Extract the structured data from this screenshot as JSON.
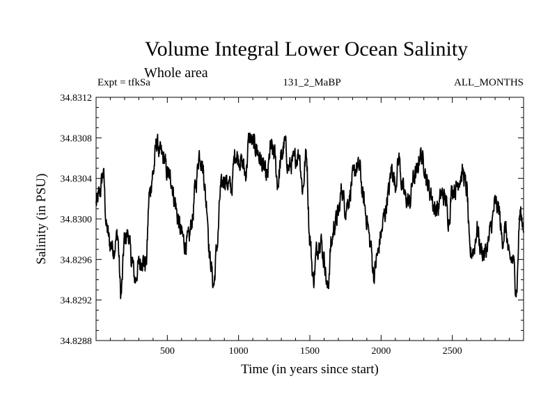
{
  "chart_data": {
    "type": "line",
    "title": "Volume Integral Lower Ocean Salinity",
    "subtitle": "Whole area",
    "experiment_label": "Expt = tfkSa",
    "run_label": "131_2_MaBP",
    "period_label": "ALL_MONTHS",
    "xlabel": "Time (in years since start)",
    "ylabel": "Salinity (in PSU)",
    "xlim": [
      0,
      3000
    ],
    "ylim": [
      34.8288,
      34.8312
    ],
    "x_ticks": [
      500,
      1000,
      1500,
      2000,
      2500
    ],
    "y_ticks": [
      "34.8288",
      "34.8292",
      "34.8296",
      "34.8300",
      "34.8304",
      "34.8308",
      "34.8312"
    ],
    "grid": false,
    "line_color": "#000000",
    "series": [
      {
        "name": "Salinity",
        "x": [
          0,
          25,
          50,
          75,
          100,
          125,
          150,
          175,
          200,
          225,
          250,
          275,
          300,
          325,
          350,
          375,
          400,
          425,
          450,
          475,
          500,
          525,
          550,
          575,
          600,
          625,
          650,
          675,
          700,
          725,
          750,
          775,
          800,
          825,
          850,
          875,
          900,
          925,
          950,
          975,
          1000,
          1025,
          1050,
          1075,
          1100,
          1125,
          1150,
          1175,
          1200,
          1225,
          1250,
          1275,
          1300,
          1325,
          1350,
          1375,
          1400,
          1425,
          1450,
          1475,
          1500,
          1525,
          1550,
          1575,
          1600,
          1625,
          1650,
          1675,
          1700,
          1725,
          1750,
          1775,
          1800,
          1825,
          1850,
          1875,
          1900,
          1925,
          1950,
          1975,
          2000,
          2025,
          2050,
          2075,
          2100,
          2125,
          2150,
          2175,
          2200,
          2225,
          2250,
          2275,
          2300,
          2325,
          2350,
          2375,
          2400,
          2425,
          2450,
          2475,
          2500,
          2525,
          2550,
          2575,
          2600,
          2625,
          2650,
          2675,
          2700,
          2725,
          2750,
          2775,
          2800,
          2825,
          2850,
          2875,
          2900,
          2925,
          2950,
          2975,
          3000
        ],
        "values": [
          34.83015,
          34.83025,
          34.83045,
          34.8299,
          34.82975,
          34.8297,
          34.82985,
          34.82925,
          34.8298,
          34.82985,
          34.8296,
          34.8294,
          34.82955,
          34.8296,
          34.82955,
          34.83025,
          34.83045,
          34.83075,
          34.83065,
          34.8306,
          34.83045,
          34.8304,
          34.8302,
          34.83,
          34.82985,
          34.82975,
          34.8298,
          34.83,
          34.83035,
          34.83065,
          34.8305,
          34.83015,
          34.8296,
          34.82935,
          34.82975,
          34.8303,
          34.8304,
          34.83035,
          34.8303,
          34.83065,
          34.8306,
          34.83055,
          34.83045,
          34.8308,
          34.83075,
          34.8307,
          34.8306,
          34.8305,
          34.8304,
          34.8307,
          34.83065,
          34.83035,
          34.8306,
          34.83075,
          34.8305,
          34.83055,
          34.8306,
          34.83065,
          34.8303,
          34.83065,
          34.8298,
          34.8294,
          34.8297,
          34.8298,
          34.8296,
          34.8293,
          34.82975,
          34.82995,
          34.83005,
          34.8303,
          34.8301,
          34.8302,
          34.8304,
          34.8305,
          34.8305,
          34.8302,
          34.83,
          34.82975,
          34.82945,
          34.82965,
          34.82985,
          34.83005,
          34.83025,
          34.8305,
          34.83035,
          34.8306,
          34.8303,
          34.8302,
          34.83015,
          34.8304,
          34.83045,
          34.83065,
          34.83055,
          34.83035,
          34.83025,
          34.8301,
          34.8301,
          34.83025,
          34.8302,
          34.83,
          34.8303,
          34.8303,
          34.8304,
          34.83045,
          34.8303,
          34.82965,
          34.8297,
          34.8299,
          34.8297,
          34.82965,
          34.82975,
          34.82995,
          34.83015,
          34.8301,
          34.8298,
          34.8299,
          34.8296,
          34.8296,
          34.8293,
          34.83005,
          34.82995
        ]
      }
    ]
  }
}
